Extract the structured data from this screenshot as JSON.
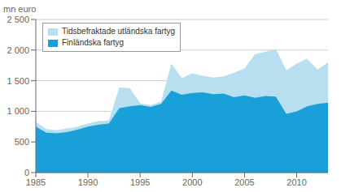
{
  "chart_data": {
    "type": "area",
    "ylabel": "mn euro",
    "x": [
      1985,
      1986,
      1987,
      1988,
      1989,
      1990,
      1991,
      1992,
      1993,
      1994,
      1995,
      1996,
      1997,
      1998,
      1999,
      2000,
      2001,
      2002,
      2003,
      2004,
      2005,
      2006,
      2007,
      2008,
      2009,
      2010,
      2011,
      2012,
      2013
    ],
    "series": [
      {
        "name": "Tidsbefraktade utländska fartyg",
        "color": "#b8dff0",
        "values": [
          830,
          710,
          690,
          720,
          750,
          800,
          840,
          850,
          1390,
          1380,
          1130,
          1100,
          1160,
          1780,
          1540,
          1620,
          1580,
          1550,
          1570,
          1630,
          1700,
          1930,
          1970,
          2020,
          1670,
          1780,
          1860,
          1680,
          1800
        ]
      },
      {
        "name": "Finländska fartyg",
        "color": "#1aa0d8",
        "values": [
          750,
          650,
          640,
          660,
          700,
          750,
          780,
          800,
          1050,
          1080,
          1100,
          1070,
          1120,
          1340,
          1270,
          1300,
          1310,
          1280,
          1290,
          1230,
          1260,
          1220,
          1250,
          1240,
          960,
          1000,
          1080,
          1120,
          1140
        ]
      }
    ],
    "xlim": [
      1985,
      2013
    ],
    "xticks": [
      1985,
      1990,
      1995,
      2000,
      2005,
      2010
    ],
    "ylim": [
      0,
      2500
    ],
    "yticks": [
      0,
      500,
      {
        "value": 1000,
        "label": "1 000"
      },
      {
        "value": 1500,
        "label": "1 500"
      },
      {
        "value": 2000,
        "label": "2 000"
      },
      {
        "value": 2500,
        "label": "2 500"
      }
    ],
    "grid": true,
    "legend": "upper left"
  }
}
